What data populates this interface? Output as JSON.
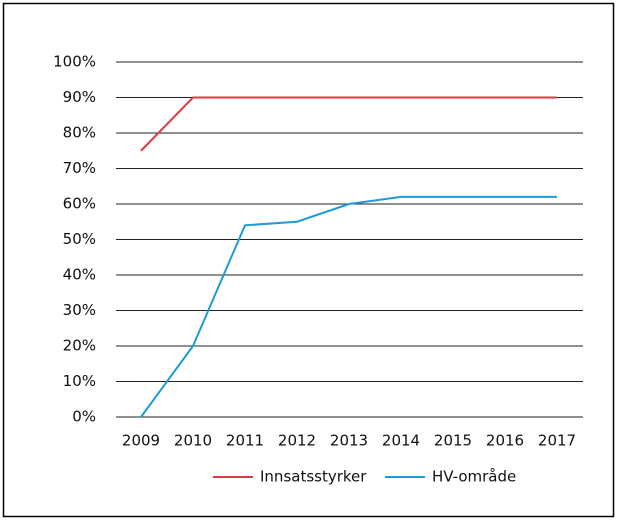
{
  "chart_data": {
    "type": "line",
    "categories": [
      "2009",
      "2010",
      "2011",
      "2012",
      "2013",
      "2014",
      "2015",
      "2016",
      "2017"
    ],
    "series": [
      {
        "name": "Innsatsstyrker",
        "color": "#e0393e",
        "values": [
          75,
          90,
          90,
          90,
          90,
          90,
          90,
          90,
          90
        ]
      },
      {
        "name": "HV-område",
        "color": "#1b9cd6",
        "values": [
          0,
          20,
          54,
          55,
          60,
          62,
          62,
          62,
          62
        ]
      }
    ],
    "ylim": [
      0,
      100
    ],
    "yticks": [
      {
        "value": 0,
        "label": "0%"
      },
      {
        "value": 10,
        "label": "10%"
      },
      {
        "value": 20,
        "label": "20%"
      },
      {
        "value": 30,
        "label": "30%"
      },
      {
        "value": 40,
        "label": "40%"
      },
      {
        "value": 50,
        "label": "50%"
      },
      {
        "value": 60,
        "label": "60%"
      },
      {
        "value": 70,
        "label": "70%"
      },
      {
        "value": 80,
        "label": "80%"
      },
      {
        "value": 90,
        "label": "90%"
      },
      {
        "value": 100,
        "label": "100%"
      }
    ],
    "grid": true,
    "legend": "bottom"
  }
}
